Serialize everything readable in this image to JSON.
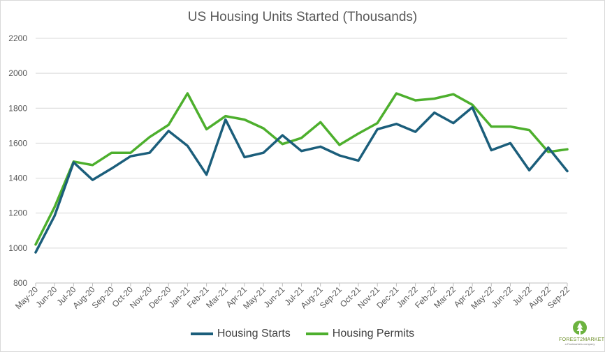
{
  "chart_data": {
    "type": "line",
    "title": "US Housing Units Started (Thousands)",
    "xlabel": "",
    "ylabel": "",
    "ylim": [
      800,
      2200
    ],
    "yticks": [
      800,
      1000,
      1200,
      1400,
      1600,
      1800,
      2000,
      2200
    ],
    "categories": [
      "May-20",
      "Jun-20",
      "Jul-20",
      "Aug-20",
      "Sep-20",
      "Oct-20",
      "Nov-20",
      "Dec-20",
      "Jan-21",
      "Feb-21",
      "Mar-21",
      "Apr-21",
      "May-21",
      "Jun-21",
      "Jul-21",
      "Aug-21",
      "Sep-21",
      "Oct-21",
      "Nov-21",
      "Dec-21",
      "Jan-22",
      "Feb-22",
      "Mar-22",
      "Apr-22",
      "May-22",
      "Jun-22",
      "Jul-22",
      "Aug-22",
      "Sep-22"
    ],
    "grid": true,
    "legend_position": "bottom",
    "series": [
      {
        "name": "Housing Starts",
        "color": "#1b5e7b",
        "values": [
          975,
          1185,
          1490,
          1390,
          1455,
          1525,
          1545,
          1670,
          1585,
          1420,
          1735,
          1520,
          1545,
          1645,
          1555,
          1580,
          1530,
          1500,
          1680,
          1710,
          1665,
          1775,
          1715,
          1805,
          1560,
          1600,
          1445,
          1575,
          1440
        ]
      },
      {
        "name": "Housing Permits",
        "color": "#4daf2d",
        "values": [
          1020,
          1235,
          1495,
          1475,
          1545,
          1545,
          1635,
          1705,
          1885,
          1680,
          1755,
          1735,
          1685,
          1595,
          1630,
          1720,
          1590,
          1655,
          1715,
          1885,
          1845,
          1855,
          1880,
          1820,
          1695,
          1695,
          1675,
          1550,
          1565
        ]
      }
    ]
  },
  "logo": {
    "name": "FOREST2MARKET",
    "tagline": "a Fastmarkets company"
  }
}
